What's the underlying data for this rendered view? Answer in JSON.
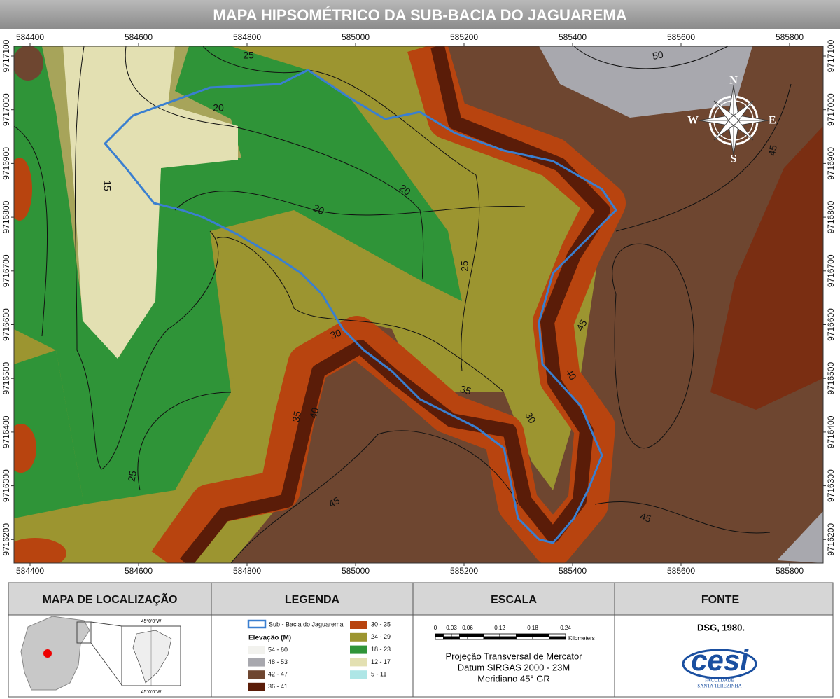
{
  "title": "MAPA HIPSOMÉTRICO DA SUB-BACIA DO JAGUAREMA",
  "map": {
    "x_ticks": [
      584400,
      584600,
      584800,
      585000,
      585200,
      585400,
      585600,
      585800
    ],
    "y_ticks": [
      9717100,
      9717000,
      9716900,
      9716800,
      9716700,
      9716600,
      9716500,
      9716400,
      9716300,
      9716200
    ],
    "contour_labels": [
      25,
      20,
      15,
      20,
      20,
      25,
      30,
      35,
      35,
      40,
      30,
      40,
      45,
      45,
      45,
      45,
      50,
      25
    ],
    "compass": {
      "n": "N",
      "s": "S",
      "e": "E",
      "w": "W"
    }
  },
  "panels": {
    "location": {
      "header": "MAPA DE LOCALIZAÇÃO",
      "meridian_top": "45°0'0\"W",
      "meridian_bottom": "45°0'0\"W"
    },
    "legend": {
      "header": "LEGENDA",
      "boundary": "Sub - Bacia do Jaguarema",
      "elevation_title": "Elevação (M)",
      "classes": [
        {
          "label": "54 - 60",
          "color": "#f2f2ee"
        },
        {
          "label": "48 - 53",
          "color": "#a8a8ae"
        },
        {
          "label": "42 - 47",
          "color": "#6e4630"
        },
        {
          "label": "36 - 41",
          "color": "#5a1c08"
        },
        {
          "label": "30 - 35",
          "color": "#b8440f"
        },
        {
          "label": "24 - 29",
          "color": "#9c9530"
        },
        {
          "label": "18 - 23",
          "color": "#2f9438"
        },
        {
          "label": "12 - 17",
          "color": "#e3e0b2"
        },
        {
          "label": "5 - 11",
          "color": "#aee6e6"
        }
      ]
    },
    "scale": {
      "header": "ESCALA",
      "ticks": [
        "0",
        "0,03",
        "0,06",
        "0,12",
        "0,18",
        "0,24"
      ],
      "unit": "Kilometers",
      "projection": [
        "Projeção Transversal de Mercator",
        "Datum SIRGAS 2000 - 23M",
        "Meridiano 45° GR"
      ]
    },
    "source": {
      "header": "FONTE",
      "text": "DSG, 1980.",
      "logo": "cesi",
      "logo_sub": [
        "FACULDADE",
        "SANTA TEREZINHA"
      ]
    }
  }
}
